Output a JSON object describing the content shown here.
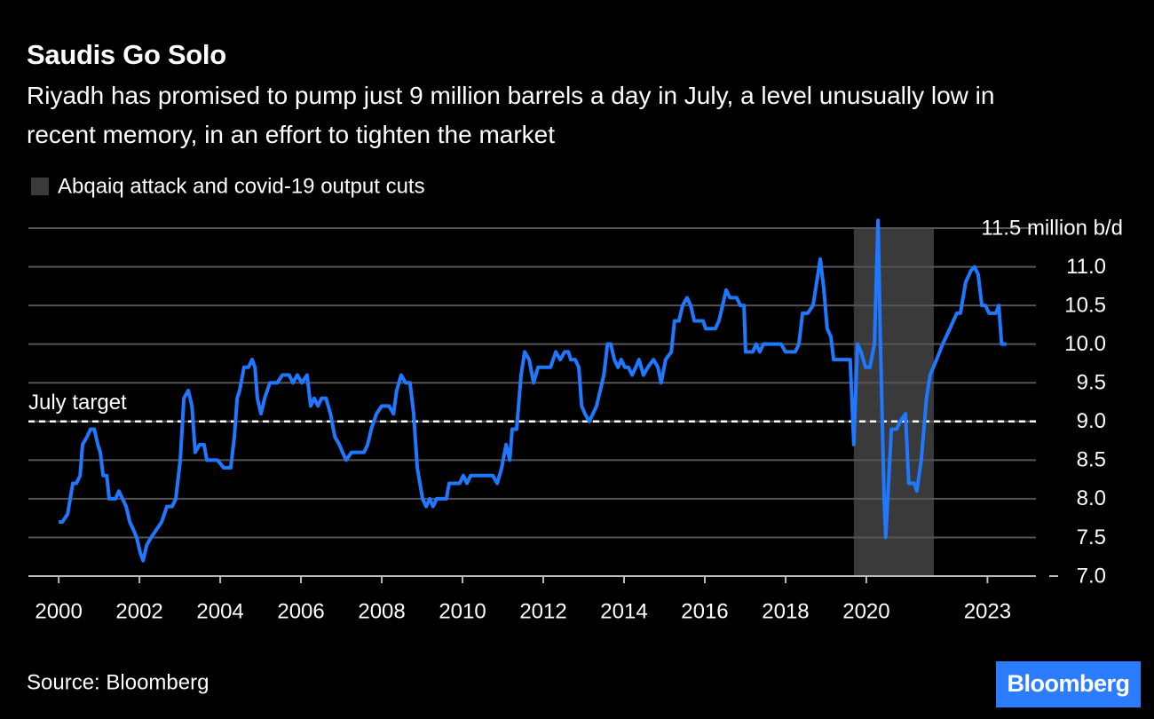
{
  "chart_data": {
    "type": "line",
    "title": "Saudis Go Solo",
    "subtitle": "Riyadh has promised to pump just 9 million barrels a day in July, a level unusually low in recent memory, in an effort to tighten the market",
    "color": "#1f78ff",
    "highlight": {
      "label": "Abqaiq attack and covid-19 output cuts",
      "xlim": [
        2019.69,
        2021.67
      ],
      "color": "#3a3a3a"
    },
    "reference_line": {
      "value": 9,
      "label": "July target"
    },
    "xlim": [
      1999.25,
      2024.2
    ],
    "xticks": [
      2000,
      2002,
      2004,
      2006,
      2008,
      2010,
      2012,
      2014,
      2016,
      2018,
      2020,
      2023
    ],
    "ylim": [
      7,
      11.7
    ],
    "yticks": [
      {
        "value": 7,
        "label": "7.0"
      },
      {
        "value": 7.5,
        "label": "7.5"
      },
      {
        "value": 8,
        "label": "8.0"
      },
      {
        "value": 8.5,
        "label": "8.5"
      },
      {
        "value": 9,
        "label": "9.0"
      },
      {
        "value": 9.5,
        "label": "9.5"
      },
      {
        "value": 10,
        "label": "10.0"
      },
      {
        "value": 10.5,
        "label": "10.5"
      },
      {
        "value": 11,
        "label": "11.0"
      },
      {
        "value": 11.5,
        "label": "11.5 million b/d"
      }
    ],
    "grid": true,
    "x": [
      2000.0,
      2000.09,
      2000.22,
      2000.35,
      2000.44,
      2000.53,
      2000.59,
      2000.7,
      2000.79,
      2000.88,
      2000.97,
      2001.03,
      2001.1,
      2001.19,
      2001.25,
      2001.41,
      2001.49,
      2001.58,
      2001.67,
      2001.76,
      2001.85,
      2001.93,
      2002.02,
      2002.09,
      2002.18,
      2002.29,
      2002.42,
      2002.55,
      2002.68,
      2002.81,
      2002.9,
      2003.01,
      2003.1,
      2003.21,
      2003.3,
      2003.38,
      2003.49,
      2003.6,
      2003.67,
      2003.93,
      2004.09,
      2004.26,
      2004.35,
      2004.42,
      2004.48,
      2004.59,
      2004.7,
      2004.79,
      2004.86,
      2004.92,
      2005.01,
      2005.1,
      2005.23,
      2005.41,
      2005.54,
      2005.71,
      2005.8,
      2005.91,
      2006.02,
      2006.15,
      2006.24,
      2006.33,
      2006.42,
      2006.51,
      2006.62,
      2006.73,
      2006.84,
      2006.95,
      2007.03,
      2007.12,
      2007.25,
      2007.45,
      2007.56,
      2007.65,
      2007.74,
      2007.87,
      2008.0,
      2008.18,
      2008.29,
      2008.37,
      2008.48,
      2008.59,
      2008.7,
      2008.79,
      2008.88,
      2009.01,
      2009.1,
      2009.19,
      2009.27,
      2009.36,
      2009.6,
      2009.67,
      2009.93,
      2010.02,
      2010.11,
      2010.2,
      2010.75,
      2010.86,
      2010.97,
      2011.08,
      2011.17,
      2011.23,
      2011.34,
      2011.45,
      2011.54,
      2011.65,
      2011.76,
      2011.87,
      2012.18,
      2012.31,
      2012.42,
      2012.53,
      2012.62,
      2012.68,
      2012.79,
      2012.88,
      2012.95,
      2013.03,
      2013.14,
      2013.23,
      2013.32,
      2013.41,
      2013.5,
      2013.59,
      2013.67,
      2013.76,
      2013.85,
      2013.93,
      2014.02,
      2014.11,
      2014.2,
      2014.29,
      2014.37,
      2014.48,
      2014.59,
      2014.73,
      2014.84,
      2014.92,
      2015.03,
      2015.17,
      2015.25,
      2015.36,
      2015.45,
      2015.56,
      2015.65,
      2015.74,
      2015.96,
      2016.02,
      2016.26,
      2016.35,
      2016.44,
      2016.53,
      2016.62,
      2016.79,
      2016.88,
      2016.97,
      2017.01,
      2017.19,
      2017.27,
      2017.36,
      2017.45,
      2017.89,
      2018.0,
      2018.24,
      2018.33,
      2018.42,
      2018.55,
      2018.68,
      2018.77,
      2018.86,
      2018.95,
      2019.03,
      2019.12,
      2019.19,
      2019.6,
      2019.69,
      2019.78,
      2019.87,
      2019.98,
      2020.09,
      2020.2,
      2020.29,
      2020.35,
      2020.44,
      2020.48,
      2020.53,
      2020.62,
      2020.75,
      2020.84,
      2020.97,
      2021.05,
      2021.19,
      2021.25,
      2021.36,
      2021.49,
      2021.58,
      2021.74,
      2021.89,
      2022.07,
      2022.24,
      2022.33,
      2022.46,
      2022.59,
      2022.68,
      2022.77,
      2022.86,
      2022.95,
      2023.04,
      2023.21,
      2023.28,
      2023.35,
      2023.47
    ],
    "values": [
      7.7,
      7.7,
      7.8,
      8.2,
      8.2,
      8.3,
      8.7,
      8.8,
      8.9,
      8.9,
      8.7,
      8.6,
      8.3,
      8.3,
      8.0,
      8.0,
      8.1,
      8.0,
      7.9,
      7.7,
      7.6,
      7.5,
      7.3,
      7.2,
      7.4,
      7.5,
      7.6,
      7.7,
      7.9,
      7.9,
      8.0,
      8.5,
      9.3,
      9.4,
      9.2,
      8.6,
      8.7,
      8.7,
      8.5,
      8.5,
      8.4,
      8.4,
      8.8,
      9.3,
      9.4,
      9.7,
      9.7,
      9.8,
      9.7,
      9.3,
      9.1,
      9.3,
      9.5,
      9.5,
      9.6,
      9.6,
      9.5,
      9.6,
      9.5,
      9.6,
      9.2,
      9.3,
      9.2,
      9.3,
      9.3,
      9.1,
      8.8,
      8.7,
      8.6,
      8.5,
      8.6,
      8.6,
      8.6,
      8.7,
      8.9,
      9.1,
      9.2,
      9.2,
      9.1,
      9.4,
      9.6,
      9.5,
      9.5,
      9.1,
      8.4,
      8.0,
      7.9,
      8.0,
      7.9,
      8.0,
      8.0,
      8.2,
      8.2,
      8.3,
      8.2,
      8.3,
      8.3,
      8.2,
      8.4,
      8.7,
      8.5,
      8.9,
      8.9,
      9.6,
      9.9,
      9.8,
      9.5,
      9.7,
      9.7,
      9.9,
      9.8,
      9.9,
      9.9,
      9.8,
      9.8,
      9.7,
      9.2,
      9.1,
      9.0,
      9.1,
      9.2,
      9.4,
      9.6,
      10.0,
      10.0,
      9.8,
      9.7,
      9.8,
      9.7,
      9.7,
      9.6,
      9.7,
      9.8,
      9.6,
      9.7,
      9.8,
      9.7,
      9.5,
      9.8,
      9.9,
      10.3,
      10.3,
      10.5,
      10.6,
      10.5,
      10.3,
      10.3,
      10.2,
      10.2,
      10.3,
      10.5,
      10.7,
      10.6,
      10.6,
      10.5,
      10.5,
      9.9,
      9.9,
      10.0,
      9.9,
      10.0,
      10.0,
      9.9,
      9.9,
      10.0,
      10.4,
      10.4,
      10.5,
      10.8,
      11.1,
      10.7,
      10.2,
      10.1,
      9.8,
      9.8,
      8.7,
      10.0,
      9.9,
      9.7,
      9.7,
      10.0,
      11.6,
      10.0,
      8.0,
      7.5,
      8.0,
      8.9,
      8.9,
      9.0,
      9.1,
      8.2,
      8.2,
      8.1,
      8.5,
      9.3,
      9.6,
      9.8,
      10.0,
      10.2,
      10.4,
      10.4,
      10.8,
      10.95,
      11.0,
      10.9,
      10.5,
      10.5,
      10.4,
      10.4,
      10.5,
      10.0,
      10.0
    ],
    "source": "Source: Bloomberg",
    "logo": "Bloomberg"
  }
}
